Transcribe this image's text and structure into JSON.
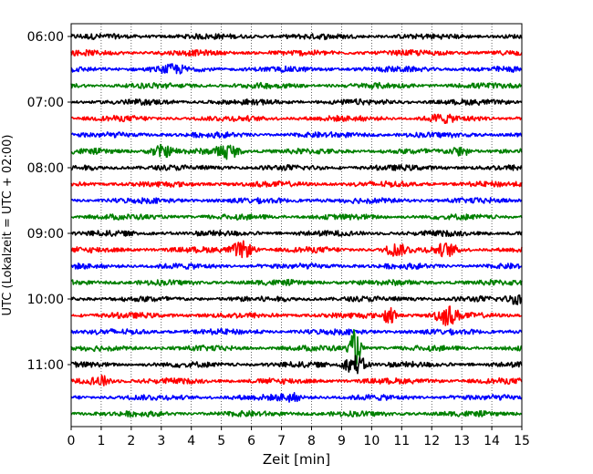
{
  "chart_data": {
    "type": "line",
    "title": "",
    "xlabel": "Zeit  [min]",
    "ylabel": "UTC (Lokalzeit = UTC + 02:00)",
    "xlim": [
      0,
      15
    ],
    "xticks": [
      0,
      1,
      2,
      3,
      4,
      5,
      6,
      7,
      8,
      9,
      10,
      11,
      12,
      13,
      14,
      15
    ],
    "ytick_labels": [
      "06:00",
      "07:00",
      "08:00",
      "09:00",
      "10:00",
      "11:00"
    ],
    "grid": "vertical dotted",
    "trace_colors": [
      "#000000",
      "#ff0000",
      "#0000ff",
      "#008000"
    ],
    "traces": [
      {
        "start": "06:00",
        "color": "#000000"
      },
      {
        "start": "06:15",
        "color": "#ff0000"
      },
      {
        "start": "06:30",
        "color": "#0000ff"
      },
      {
        "start": "06:45",
        "color": "#008000"
      },
      {
        "start": "07:00",
        "color": "#000000"
      },
      {
        "start": "07:15",
        "color": "#ff0000"
      },
      {
        "start": "07:30",
        "color": "#0000ff"
      },
      {
        "start": "07:45",
        "color": "#008000"
      },
      {
        "start": "08:00",
        "color": "#000000"
      },
      {
        "start": "08:15",
        "color": "#ff0000"
      },
      {
        "start": "08:30",
        "color": "#0000ff"
      },
      {
        "start": "08:45",
        "color": "#008000"
      },
      {
        "start": "09:00",
        "color": "#000000"
      },
      {
        "start": "09:15",
        "color": "#ff0000"
      },
      {
        "start": "09:30",
        "color": "#0000ff"
      },
      {
        "start": "09:45",
        "color": "#008000"
      },
      {
        "start": "10:00",
        "color": "#000000"
      },
      {
        "start": "10:15",
        "color": "#ff0000"
      },
      {
        "start": "10:30",
        "color": "#0000ff"
      },
      {
        "start": "10:45",
        "color": "#008000"
      },
      {
        "start": "11:00",
        "color": "#000000"
      },
      {
        "start": "11:15",
        "color": "#ff0000"
      },
      {
        "start": "11:30",
        "color": "#0000ff"
      },
      {
        "start": "11:45",
        "color": "#008000"
      }
    ],
    "events": [
      {
        "trace": 7,
        "x": 3.0,
        "amp": 0.35
      },
      {
        "trace": 7,
        "x": 5.2,
        "amp": 0.45
      },
      {
        "trace": 7,
        "x": 13.0,
        "amp": 0.25
      },
      {
        "trace": 2,
        "x": 3.4,
        "amp": 0.2
      },
      {
        "trace": 5,
        "x": 12.3,
        "amp": 0.2
      },
      {
        "trace": 13,
        "x": 5.7,
        "amp": 0.5
      },
      {
        "trace": 13,
        "x": 10.8,
        "amp": 0.35
      },
      {
        "trace": 13,
        "x": 12.5,
        "amp": 0.35
      },
      {
        "trace": 17,
        "x": 10.6,
        "amp": 0.7
      },
      {
        "trace": 17,
        "x": 12.5,
        "amp": 0.55
      },
      {
        "trace": 16,
        "x": 14.9,
        "amp": 0.3
      },
      {
        "trace": 19,
        "x": 9.45,
        "amp": 1.2
      },
      {
        "trace": 20,
        "x": 9.45,
        "amp": 0.6
      },
      {
        "trace": 21,
        "x": 1.0,
        "amp": 0.3
      },
      {
        "trace": 22,
        "x": 7.3,
        "amp": 0.2
      }
    ]
  }
}
